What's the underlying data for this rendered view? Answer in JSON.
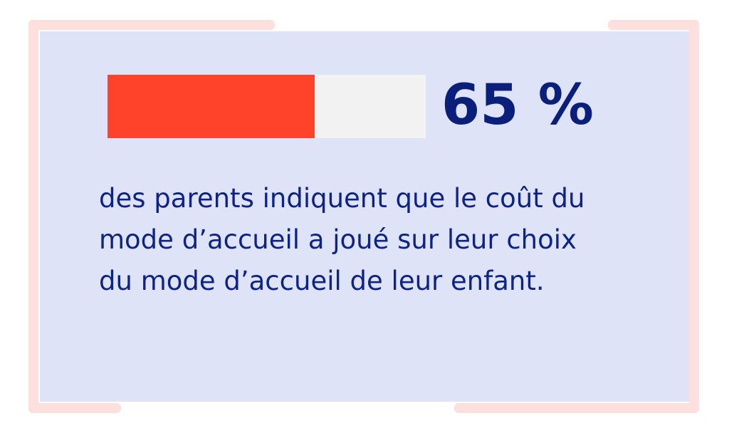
{
  "stat": {
    "value_text": "65 %",
    "fraction": 0.65,
    "description": "des parents indiquent que le coût du mode d’accueil a joué sur leur choix du mode d’accueil de leur enfant."
  },
  "colors": {
    "background": "#ffffff",
    "card": "#dfe3f8",
    "frame_accent": "#fde0dd",
    "bar_fill": "#ff4229",
    "bar_track": "#f2f2f2",
    "text": "#0d2385",
    "percent_text": "#0a1f7a"
  }
}
